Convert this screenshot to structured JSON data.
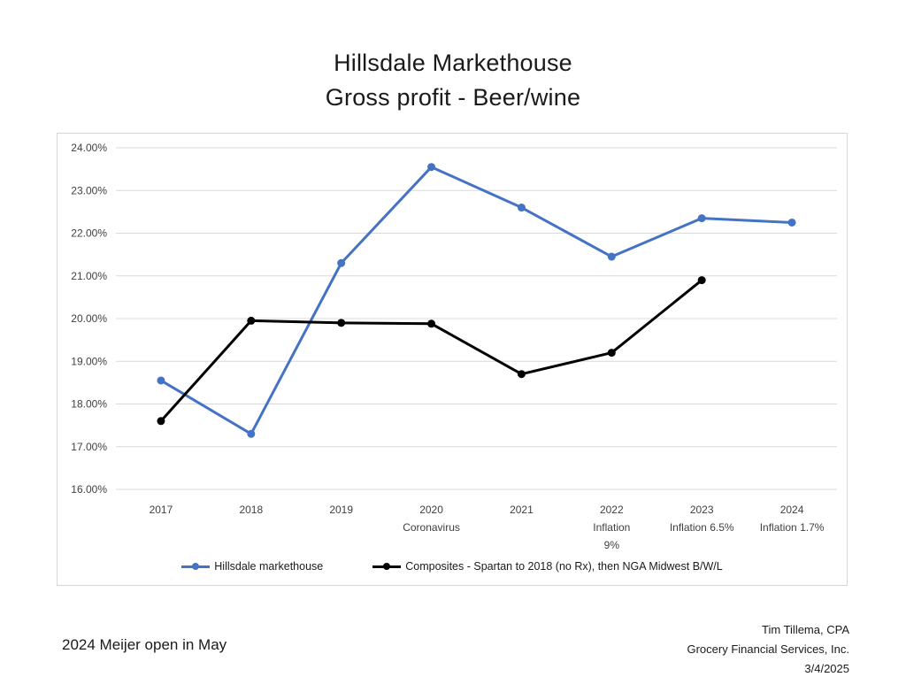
{
  "title": {
    "line1": "Hillsdale Markethouse",
    "line2": "Gross profit - Beer/wine"
  },
  "colors": {
    "hillsdale_blue": "#4472C4",
    "composites_black": "#000000",
    "gridline": "#d9d9d9",
    "chart_border": "#d6d6d6",
    "axis_text": "#404040",
    "title_text": "#1a1a1a"
  },
  "chart_data": {
    "type": "line",
    "title": "Hillsdale Markethouse Gross profit - Beer/wine",
    "categories": [
      "2017",
      "2018",
      "2019",
      "2020",
      "2021",
      "2022",
      "2023",
      "2024"
    ],
    "category_sublabels": [
      [],
      [],
      [],
      [
        "Coronavirus"
      ],
      [],
      [
        "Inflation",
        "9%"
      ],
      [
        "Inflation 6.5%"
      ],
      [
        "Inflation 1.7%"
      ]
    ],
    "series": [
      {
        "name": "Hillsdale markethouse",
        "color": "#4472C4",
        "values": [
          18.55,
          17.3,
          21.3,
          23.55,
          22.6,
          21.45,
          22.35,
          22.25
        ]
      },
      {
        "name": "Composites - Spartan to 2018 (no Rx), then NGA Midwest B/W/L",
        "color": "#000000",
        "values": [
          17.6,
          19.95,
          19.9,
          19.88,
          18.7,
          19.2,
          20.9,
          null
        ]
      }
    ],
    "ylim": [
      16,
      24
    ],
    "ytick_step": 1,
    "yticks": [
      "24.00%",
      "23.00%",
      "22.00%",
      "21.00%",
      "20.00%",
      "19.00%",
      "18.00%",
      "17.00%",
      "16.00%"
    ],
    "xlabel": "",
    "ylabel": "",
    "grid": true,
    "legend_position": "bottom"
  },
  "footer": {
    "left_note": "2024 Meijer open in May",
    "right_lines": [
      "Tim Tillema, CPA",
      "Grocery Financial Services, Inc.",
      "3/4/2025"
    ]
  }
}
